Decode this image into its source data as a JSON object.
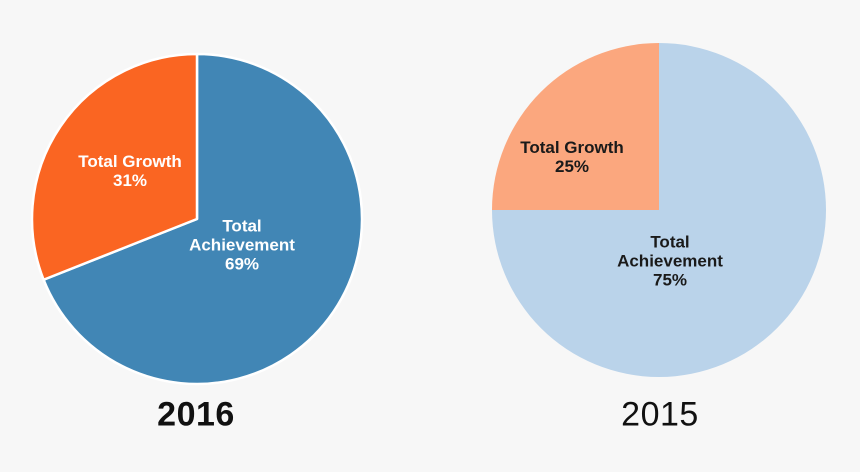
{
  "page": {
    "background_color": "#F7F7F7"
  },
  "chart_data": [
    {
      "type": "pie",
      "title": "2016",
      "labels": [
        "Total Achievement",
        "Total Growth"
      ],
      "values": [
        69,
        31
      ],
      "pct_labels": [
        "69%",
        "31%"
      ],
      "colors": [
        "#4186B5",
        "#FA6522"
      ],
      "slice_label_color": "#FFFFFF",
      "start_angle_deg": 0,
      "direction": "clockwise",
      "separator_color": "#FFFFFF",
      "separator_width": 2.5,
      "legend": "none"
    },
    {
      "type": "pie",
      "title": "2015",
      "labels": [
        "Total Achievement",
        "Total Growth"
      ],
      "values": [
        75,
        25
      ],
      "pct_labels": [
        "75%",
        "25%"
      ],
      "colors": [
        "#BAD3EA",
        "#FBA77E"
      ],
      "slice_label_color": "#1A1A1A",
      "start_angle_deg": 0,
      "direction": "clockwise",
      "separator_color": null,
      "separator_width": 0,
      "legend": "none"
    }
  ]
}
